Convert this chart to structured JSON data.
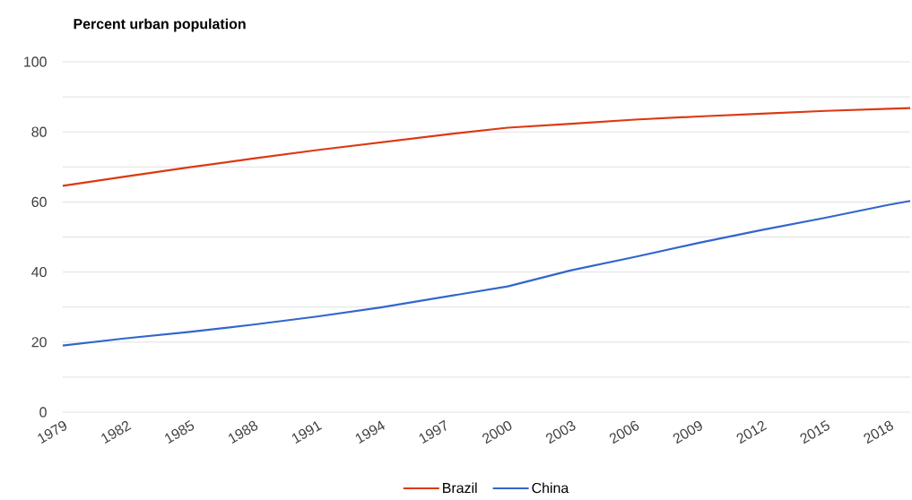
{
  "chart_data": {
    "type": "line",
    "title": "Percent urban population",
    "x": [
      1979,
      1982,
      1985,
      1988,
      1991,
      1994,
      1997,
      2000,
      2003,
      2006,
      2009,
      2012,
      2015,
      2018,
      2019
    ],
    "series": [
      {
        "name": "Brazil",
        "color": "#dc3912",
        "values": [
          64.6,
          67.3,
          69.9,
          72.4,
          74.8,
          77.0,
          79.2,
          81.2,
          82.3,
          83.5,
          84.4,
          85.2,
          86.0,
          86.6,
          86.8
        ]
      },
      {
        "name": "China",
        "color": "#3366cc",
        "values": [
          19.0,
          21.1,
          22.9,
          25.0,
          27.3,
          29.9,
          32.9,
          35.9,
          40.5,
          44.3,
          48.3,
          52.0,
          55.5,
          59.2,
          60.3
        ]
      }
    ],
    "xlim": [
      1979,
      2019
    ],
    "xticks": [
      1979,
      1982,
      1985,
      1988,
      1991,
      1994,
      1997,
      2000,
      2003,
      2006,
      2009,
      2012,
      2015,
      2018
    ],
    "ylim": [
      0,
      100
    ],
    "yticks": [
      0,
      {
        "value": 10,
        "label": null
      },
      20,
      {
        "value": 30,
        "label": null
      },
      40,
      {
        "value": 50,
        "label": null
      },
      60,
      {
        "value": 70,
        "label": null
      },
      80,
      {
        "value": 90,
        "label": null
      },
      100
    ],
    "grid": "y",
    "legend": "bottom",
    "marker": "none",
    "line_style": "solid"
  }
}
